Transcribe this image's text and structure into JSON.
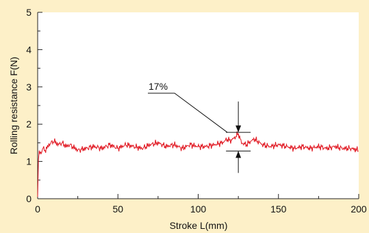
{
  "chart_data": {
    "type": "line",
    "xlabel": "Stroke L(mm)",
    "ylabel": "Rolling resistance F(N)",
    "xlim": [
      0,
      200
    ],
    "ylim": [
      0,
      5
    ],
    "xticks": [
      0,
      50,
      100,
      150,
      200
    ],
    "yticks": [
      0,
      1,
      2,
      3,
      4,
      5
    ],
    "grid": false,
    "colors": {
      "line": "#e0141e",
      "background": "#fdf0c8",
      "plot_area": "#ffffff",
      "axes": "#222222"
    },
    "series": [
      {
        "x": [
          0,
          0.5,
          1,
          2,
          3,
          5,
          7,
          10,
          13,
          15,
          18,
          20,
          25,
          30,
          35,
          40,
          45,
          50,
          55,
          60,
          65,
          70,
          75,
          80,
          85,
          90,
          95,
          100,
          105,
          110,
          115,
          118,
          120,
          123,
          125,
          127,
          130,
          133,
          135,
          140,
          145,
          150,
          155,
          160,
          165,
          170,
          175,
          180,
          185,
          190,
          195,
          200
        ],
        "y": [
          0.05,
          1.05,
          1.25,
          1.2,
          1.35,
          1.3,
          1.45,
          1.55,
          1.45,
          1.5,
          1.4,
          1.45,
          1.3,
          1.35,
          1.4,
          1.35,
          1.45,
          1.35,
          1.45,
          1.4,
          1.35,
          1.45,
          1.5,
          1.4,
          1.45,
          1.35,
          1.45,
          1.4,
          1.4,
          1.45,
          1.5,
          1.6,
          1.55,
          1.65,
          1.75,
          1.5,
          1.45,
          1.55,
          1.6,
          1.45,
          1.4,
          1.45,
          1.4,
          1.35,
          1.4,
          1.35,
          1.4,
          1.35,
          1.4,
          1.35,
          1.35,
          1.3
        ]
      }
    ],
    "annotations": [
      {
        "text": "17%",
        "x_center": 125,
        "top": 1.78,
        "bottom": 1.28
      }
    ]
  }
}
